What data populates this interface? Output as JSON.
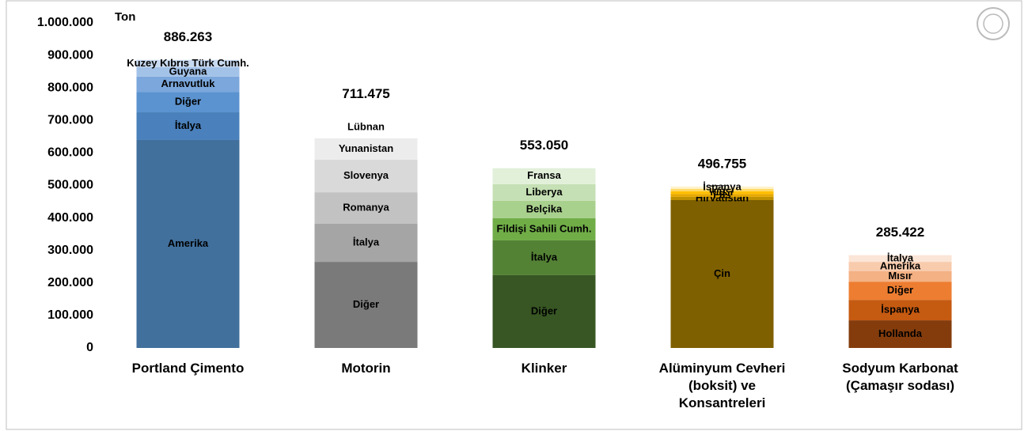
{
  "chart_data": {
    "type": "stacked_bar",
    "y_label": "Ton",
    "ylim": [
      0,
      1000000
    ],
    "yticks": [
      0,
      {
        "value": 100000,
        "label": "100.000"
      },
      {
        "value": 200000,
        "label": "200.000"
      },
      {
        "value": 300000,
        "label": "300.000"
      },
      {
        "value": 400000,
        "label": "400.000"
      },
      {
        "value": 500000,
        "label": "500.000"
      },
      {
        "value": 600000,
        "label": "600.000"
      },
      {
        "value": 700000,
        "label": "700.000"
      },
      {
        "value": 800000,
        "label": "800.000"
      },
      {
        "value": 900000,
        "label": "900.000"
      },
      {
        "value": 1000000,
        "label": "1.000.000"
      }
    ],
    "stacks": [
      {
        "category": "Portland Çimento",
        "total": 886263,
        "total_label": "886.263",
        "segments": [
          {
            "name": "Amerika",
            "value": 640000,
            "color": "#41709d"
          },
          {
            "name": "İtalya",
            "value": 85000,
            "color": "#4a80bb"
          },
          {
            "name": "Diğer",
            "value": 63000,
            "color": "#5b93d0"
          },
          {
            "name": "Arnavutluk",
            "value": 47000,
            "color": "#7ba7dc"
          },
          {
            "name": "Guyana",
            "value": 29000,
            "color": "#a3c2e8"
          },
          {
            "name": "Kuzey Kıbrıs Türk Cumh.",
            "value": 22263,
            "color": "#c8daf0"
          }
        ]
      },
      {
        "category": "Motorin",
        "total": 711475,
        "total_label": "711.475",
        "segments": [
          {
            "name": "Diğer",
            "value": 265000,
            "color": "#7a7a7a"
          },
          {
            "name": "İtalya",
            "value": 117000,
            "color": "#a5a5a5"
          },
          {
            "name": "Romanya",
            "value": 97000,
            "color": "#c2c2c2"
          },
          {
            "name": "Slovenya",
            "value": 100000,
            "color": "#d9d9d9"
          },
          {
            "name": "Yunanistan",
            "value": 66000,
            "color": "#ececec"
          },
          {
            "name": "Lübnan",
            "value": 66475,
            "color": "#ffffff"
          }
        ]
      },
      {
        "category": "Klinker",
        "total": 553050,
        "total_label": "553.050",
        "segments": [
          {
            "name": "Diğer",
            "value": 224000,
            "color": "#375623"
          },
          {
            "name": "İtalya",
            "value": 107000,
            "color": "#548235"
          },
          {
            "name": "Fildişi Sahili Cumh.",
            "value": 68000,
            "color": "#70ad47"
          },
          {
            "name": "Belçika",
            "value": 54000,
            "color": "#a9d18e"
          },
          {
            "name": "Liberya",
            "value": 51000,
            "color": "#c5e0b4"
          },
          {
            "name": "Fransa",
            "value": 49050,
            "color": "#e2f0d9"
          }
        ]
      },
      {
        "category": "Alüminyum Cevheri (boksit) ve Konsantreleri",
        "total": 496755,
        "total_label": "496.755",
        "segments": [
          {
            "name": "Çin",
            "value": 455000,
            "color": "#7f6000"
          },
          {
            "name": "Hırvatistan",
            "value": 10000,
            "color": "#bf9000"
          },
          {
            "name": "Fas",
            "value": 9000,
            "color": "#e6a800"
          },
          {
            "name": "Mısır",
            "value": 8000,
            "color": "#ffc000"
          },
          {
            "name": "Diğer",
            "value": 7755,
            "color": "#ffd966"
          },
          {
            "name": "İspanya",
            "value": 7000,
            "color": "#fff2cc"
          }
        ]
      },
      {
        "category": "Sodyum Karbonat (Çamaşır sodası)",
        "total": 285422,
        "total_label": "285.422",
        "segments": [
          {
            "name": "Hollanda",
            "value": 85000,
            "color": "#843c0c"
          },
          {
            "name": "İspanya",
            "value": 63000,
            "color": "#c55a11"
          },
          {
            "name": "Diğer",
            "value": 56000,
            "color": "#ed7d31"
          },
          {
            "name": "Mısır",
            "value": 32000,
            "color": "#f4b183"
          },
          {
            "name": "Amerika",
            "value": 29000,
            "color": "#f8cbad"
          },
          {
            "name": "İtalya",
            "value": 20422,
            "color": "#fbe5d6"
          }
        ]
      }
    ]
  }
}
